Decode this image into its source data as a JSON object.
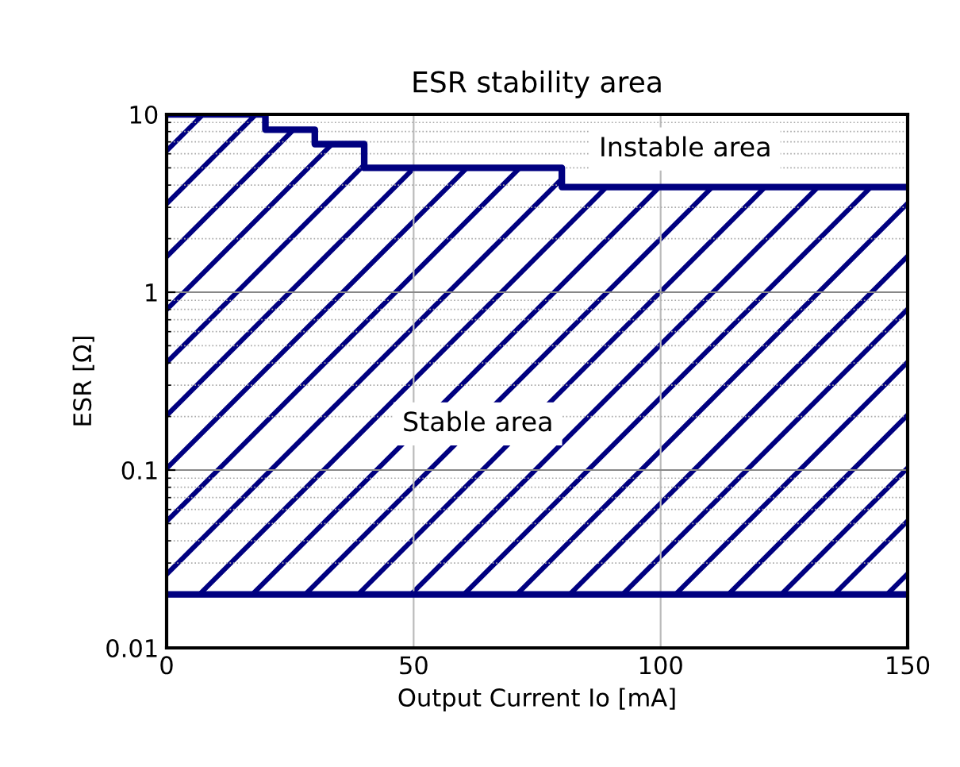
{
  "chart_data": {
    "type": "step",
    "title": "ESR stability area",
    "xlabel": "Output Current Io [mA]",
    "ylabel": "ESR [Ω]",
    "log": "y",
    "xlim": [
      0,
      150
    ],
    "xticks": [
      0,
      50,
      100,
      150
    ],
    "ylim": [
      0.01,
      10
    ],
    "yticks": [
      0.01,
      0.1,
      1,
      10
    ],
    "grid": true,
    "series": [
      {
        "color": "#000080",
        "x": [
          0,
          20,
          30,
          40,
          80,
          150
        ],
        "values": [
          10,
          8.2,
          6.8,
          5,
          3.9,
          3.9
        ],
        "lower": [
          0.02,
          0.02,
          0.02,
          0.02,
          0.02,
          0.02
        ],
        "upper": [
          10,
          8.2,
          6.8,
          5,
          3.9,
          3.9
        ]
      }
    ],
    "ref_lines": [
      {
        "axis": "y",
        "value": 0.02,
        "color": "#000080"
      }
    ],
    "annotations": [
      "Instable area",
      "Stable area"
    ]
  }
}
